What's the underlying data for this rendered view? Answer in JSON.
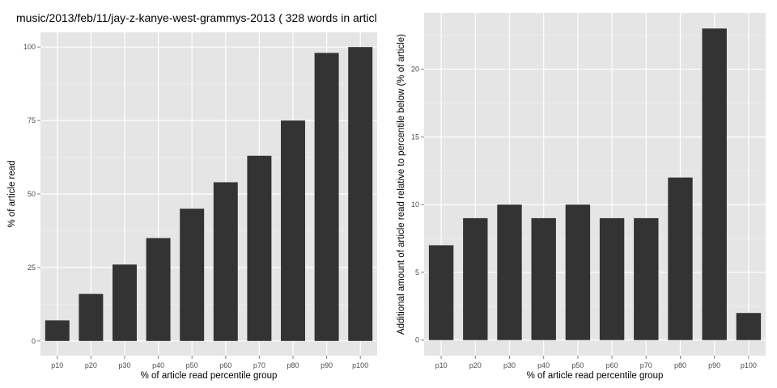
{
  "chart_data": [
    {
      "type": "bar",
      "title": "music/2013/feb/11/jay-z-kanye-west-grammys-2013 ( 328 words in articl",
      "xlabel": "% of article read percentile group",
      "ylabel": "% of article read",
      "categories": [
        "p10",
        "p20",
        "p30",
        "p40",
        "p50",
        "p60",
        "p70",
        "p80",
        "p90",
        "p100"
      ],
      "values": [
        7,
        16,
        26,
        35,
        45,
        54,
        63,
        75,
        98,
        100
      ],
      "ylim": [
        -5,
        105
      ],
      "yticks": [
        0,
        25,
        50,
        75,
        100
      ],
      "grid": true,
      "bar_color": "#333333",
      "panel_color": "#e5e5e5"
    },
    {
      "type": "bar",
      "title": "",
      "xlabel": "% of article read percentile group",
      "ylabel": "Additional amount of article read relative to percentile below (% of article)",
      "categories": [
        "p10",
        "p20",
        "p30",
        "p40",
        "p50",
        "p60",
        "p70",
        "p80",
        "p90",
        "p100"
      ],
      "values": [
        7,
        9,
        10,
        9,
        10,
        9,
        9,
        12,
        23,
        2
      ],
      "ylim": [
        -1.15,
        24.15
      ],
      "yticks": [
        0,
        5,
        10,
        15,
        20
      ],
      "grid": true,
      "bar_color": "#333333",
      "panel_color": "#e5e5e5"
    }
  ]
}
